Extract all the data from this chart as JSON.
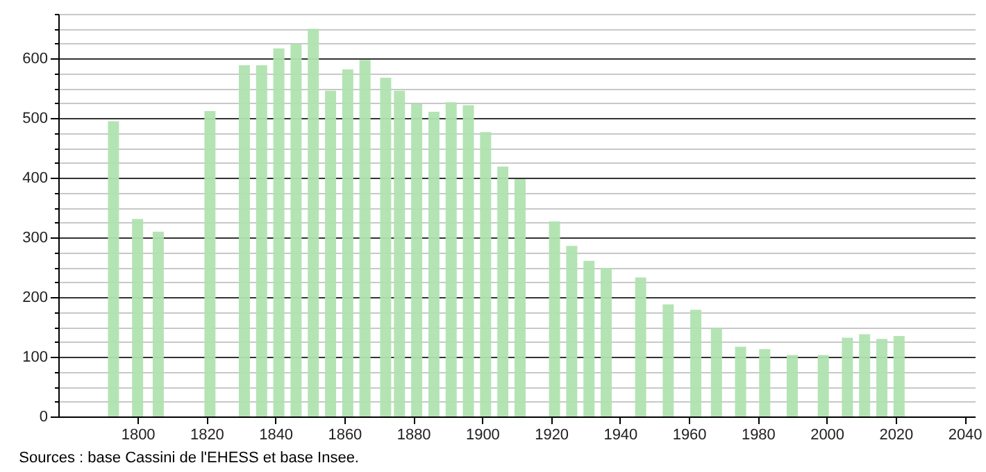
{
  "chart_data": {
    "type": "bar",
    "x": [
      1793,
      1800,
      1806,
      1821,
      1831,
      1836,
      1841,
      1846,
      1851,
      1856,
      1861,
      1866,
      1872,
      1876,
      1881,
      1886,
      1891,
      1896,
      1901,
      1906,
      1911,
      1921,
      1926,
      1931,
      1936,
      1946,
      1954,
      1962,
      1968,
      1975,
      1982,
      1990,
      1999,
      2006,
      2011,
      2016,
      2021
    ],
    "values": [
      495,
      331,
      310,
      512,
      589,
      589,
      617,
      625,
      650,
      546,
      582,
      598,
      568,
      546,
      524,
      511,
      527,
      522,
      477,
      419,
      398,
      327,
      286,
      261,
      249,
      233,
      188,
      179,
      148,
      117,
      113,
      103,
      103,
      132,
      138,
      130,
      135
    ],
    "color": "#b0e3b0",
    "xlim": [
      1777,
      2043
    ],
    "xticks": [
      1800,
      1820,
      1840,
      1860,
      1880,
      1900,
      1920,
      1940,
      1960,
      1980,
      2000,
      2020,
      2040
    ],
    "ylim": [
      0,
      675
    ],
    "yticks": [
      0,
      {
        "value": 25,
        "label": null
      },
      {
        "value": 50,
        "label": null
      },
      {
        "value": 75,
        "label": null
      },
      100,
      {
        "value": 125,
        "label": null
      },
      {
        "value": 150,
        "label": null
      },
      {
        "value": 175,
        "label": null
      },
      200,
      {
        "value": 225,
        "label": null
      },
      {
        "value": 250,
        "label": null
      },
      {
        "value": 275,
        "label": null
      },
      300,
      {
        "value": 325,
        "label": null
      },
      {
        "value": 350,
        "label": null
      },
      {
        "value": 375,
        "label": null
      },
      400,
      {
        "value": 425,
        "label": null
      },
      {
        "value": 450,
        "label": null
      },
      {
        "value": 475,
        "label": null
      },
      500,
      {
        "value": 525,
        "label": null
      },
      {
        "value": 550,
        "label": null
      },
      {
        "value": 575,
        "label": null
      },
      600,
      {
        "value": 625,
        "label": null
      },
      {
        "value": 650,
        "label": null
      },
      {
        "value": 675,
        "label": null
      }
    ],
    "grid": "y",
    "annotations": [
      "Sources : base Cassini de l'EHESS et base Insee."
    ]
  }
}
